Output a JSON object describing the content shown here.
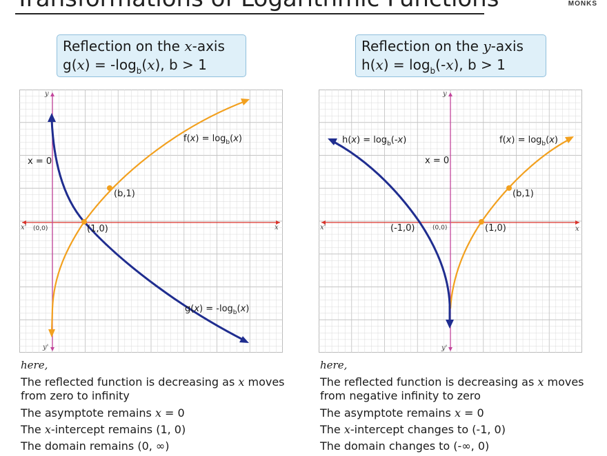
{
  "page": {
    "title": "Transformations of Logarithmic Functions",
    "brand": "MONKS"
  },
  "colors": {
    "reflected_curve": "#1f2d8f",
    "original_curve": "#f2a01e",
    "x_axis": "#d9332b",
    "y_axis": "#c2459b",
    "grid": "#d9d9d9",
    "header_bg": "#dff0f9",
    "header_border": "#8fbfdc"
  },
  "panels": [
    {
      "header": {
        "line1_pre": "Reflection on the ",
        "line1_var": "x",
        "line1_post": "-axis",
        "line2_pre": "g(",
        "line2_var": "x",
        "line2_mid": ") = -log",
        "line2_sub": "b",
        "line2_paren": "(",
        "line2_var2": "x",
        "line2_post": "), b > 1"
      },
      "graph": {
        "axis_labels": {
          "x": "x",
          "x_neg": "x'",
          "y": "y",
          "y_neg": "y'"
        },
        "origin_label": "(0,0)",
        "asymptote_label": "x = 0",
        "point_labels": [
          "(1,0)",
          "(b,1)"
        ],
        "curve_labels": {
          "original": "f(x) = log_b(x)",
          "reflected": "g(x) = -log_b(x)"
        },
        "curve_label_parts": {
          "original": {
            "pre": "f(",
            "var": "x",
            "mid": ") = log",
            "sub": "b",
            "open": "(",
            "var2": "x",
            "post": ")"
          },
          "reflected": {
            "pre": "g(",
            "var": "x",
            "mid": ") = -log",
            "sub": "b",
            "open": "(",
            "var2": "x",
            "post": ")"
          }
        }
      },
      "notes": {
        "here": "here,",
        "items": [
          {
            "pre": "The reflected function is decreasing as ",
            "var": "x",
            "post": " moves from zero to infinity"
          },
          {
            "pre": "The asymptote remains ",
            "var": "x",
            "post": " = 0"
          },
          {
            "pre": "The ",
            "var": "x",
            "post": "-intercept remains (1, 0)"
          },
          {
            "pre": "The domain remains (0, ∞)",
            "var": "",
            "post": ""
          }
        ]
      }
    },
    {
      "header": {
        "line1_pre": "Reflection on the ",
        "line1_var": "y",
        "line1_post": "-axis",
        "line2_pre": "h(",
        "line2_var": "x",
        "line2_mid": ") = log",
        "line2_sub": "b",
        "line2_paren": "(-",
        "line2_var2": "x",
        "line2_post": "), b > 1"
      },
      "graph": {
        "axis_labels": {
          "x": "x",
          "x_neg": "x'",
          "y": "y",
          "y_neg": "y'"
        },
        "origin_label": "(0,0)",
        "asymptote_label": "x = 0",
        "point_labels": [
          "(-1,0)",
          "(1,0)",
          "(b,1)"
        ],
        "curve_labels": {
          "original": "f(x) = log_b(x)",
          "reflected": "h(x) = log_b(-x)"
        },
        "curve_label_parts": {
          "original": {
            "pre": "f(",
            "var": "x",
            "mid": ") = log",
            "sub": "b",
            "open": "(",
            "var2": "x",
            "post": ")"
          },
          "reflected": {
            "pre": "h(",
            "var": "x",
            "mid": ") = log",
            "sub": "b",
            "open": "(-",
            "var2": "x",
            "post": ")"
          }
        }
      },
      "notes": {
        "here": "here,",
        "items": [
          {
            "pre": "The reflected function is decreasing as ",
            "var": "x",
            "post": " moves from negative infinity to zero"
          },
          {
            "pre": "The asymptote remains ",
            "var": "x",
            "post": " = 0"
          },
          {
            "pre": "The ",
            "var": "x",
            "post": "-intercept changes to (-1, 0)"
          },
          {
            "pre": "The domain changes to (-∞, 0)",
            "var": "",
            "post": ""
          }
        ]
      }
    }
  ]
}
